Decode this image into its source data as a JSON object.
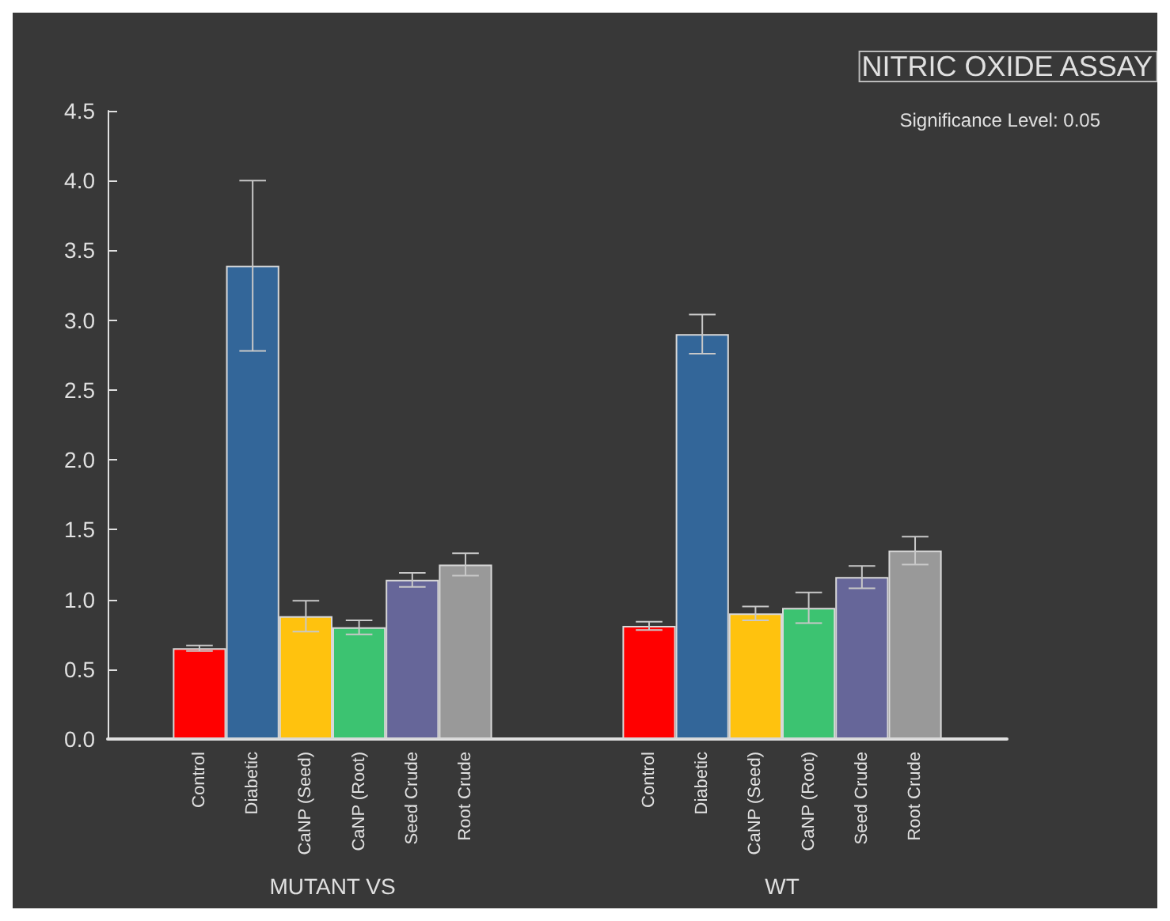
{
  "chart_data": {
    "type": "bar",
    "title": "NITRIC OXIDE ASSAY",
    "annotations": [
      "Significance Level: 0.05"
    ],
    "categories": [
      "MUTANT VS",
      "WT"
    ],
    "series": [
      {
        "name": "Control",
        "color": "#ff0000",
        "values": [
          0.65,
          0.81
        ],
        "errors": [
          0.02,
          0.03
        ]
      },
      {
        "name": "Diabetic",
        "color": "#336699",
        "values": [
          3.39,
          2.9
        ],
        "errors": [
          0.61,
          0.14
        ]
      },
      {
        "name": "CaNP (Seed)",
        "color": "#ffc20e",
        "values": [
          0.88,
          0.9
        ],
        "errors": [
          0.11,
          0.05
        ]
      },
      {
        "name": "CaNP (Root)",
        "color": "#3cc371",
        "values": [
          0.8,
          0.94
        ],
        "errors": [
          0.05,
          0.11
        ]
      },
      {
        "name": "Seed Crude",
        "color": "#666699",
        "values": [
          1.14,
          1.16
        ],
        "errors": [
          0.05,
          0.08
        ]
      },
      {
        "name": "Root Crude",
        "color": "#999999",
        "values": [
          1.25,
          1.35
        ],
        "errors": [
          0.08,
          0.1
        ]
      }
    ],
    "ylim": [
      0,
      4.5
    ],
    "yticks": [
      {
        "value": 0,
        "label": "0.0"
      },
      {
        "value": 0.5,
        "label": "0.5"
      },
      {
        "value": 1,
        "label": "1.0"
      },
      {
        "value": 1.5,
        "label": "1.5"
      },
      {
        "value": 2,
        "label": "2.0"
      },
      {
        "value": 2.5,
        "label": "2.5"
      },
      {
        "value": 3,
        "label": "3.0"
      },
      {
        "value": 3.5,
        "label": "3.5"
      },
      {
        "value": 4,
        "label": "4.0"
      },
      {
        "value": 4.5,
        "label": "4.5"
      }
    ],
    "grid": false,
    "legend": false
  }
}
